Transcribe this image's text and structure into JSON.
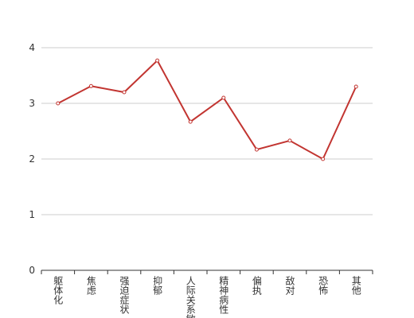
{
  "chart_data": {
    "type": "line",
    "categories": [
      "躯体化",
      "焦虑",
      "强迫症状",
      "抑郁",
      "人际关系敏感",
      "精神病性",
      "偏执",
      "敌对",
      "恐怖",
      "其他"
    ],
    "values": [
      3.0,
      3.31,
      3.2,
      3.77,
      2.67,
      3.1,
      2.17,
      2.33,
      2.0,
      3.3
    ],
    "color": "#c23531",
    "ylim": [
      0,
      4
    ],
    "yticks": [
      0,
      1,
      2,
      3,
      4
    ],
    "grid": true
  }
}
